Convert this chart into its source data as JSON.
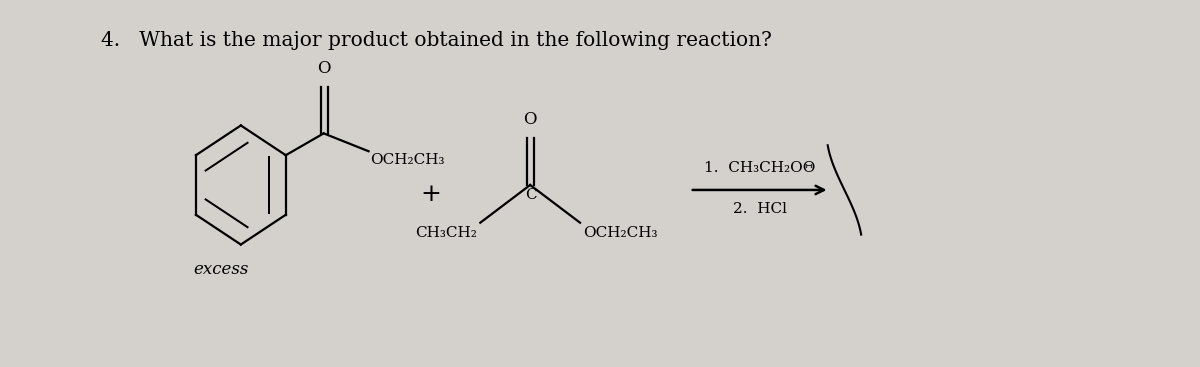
{
  "background_color": "#d4d0cc",
  "question_text": "4.   What is the major product obtained in the following reaction?",
  "question_fontsize": 14.5,
  "excess_text": "excess",
  "reagent1_text": "1.  CH₃CH₂OΘ",
  "reagent2_text": "2.  HCl"
}
